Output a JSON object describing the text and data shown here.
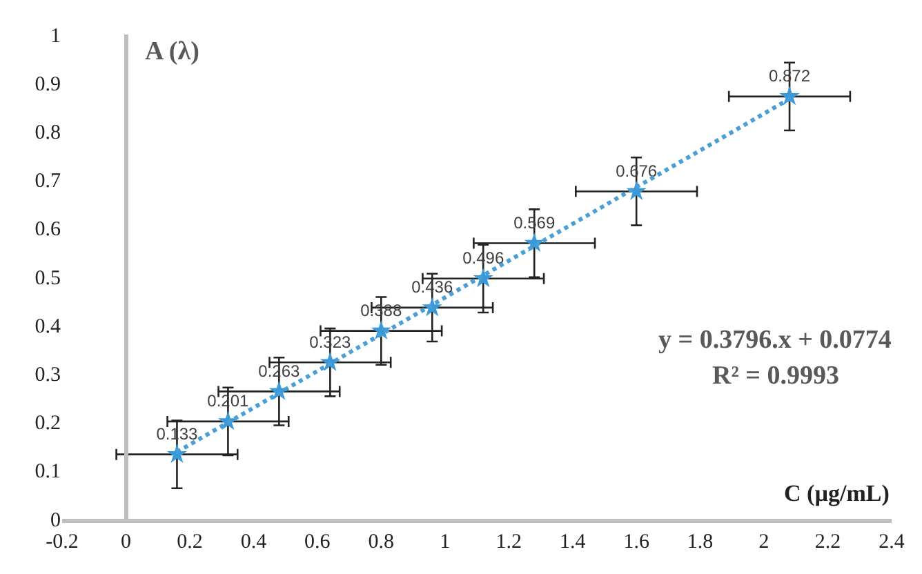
{
  "chart_data": {
    "type": "scatter",
    "xlabel": "C (µg/mL)",
    "ylabel": "A (λ)",
    "xlim": [
      -0.2,
      2.4
    ],
    "xticks": [
      -0.2,
      0,
      0.2,
      0.4,
      0.6,
      0.8,
      1,
      1.2,
      1.4,
      1.6,
      1.8,
      2,
      2.2,
      2.4
    ],
    "ylim": [
      0,
      1
    ],
    "yticks": [
      0,
      0.1,
      0.2,
      0.3,
      0.4,
      0.5,
      0.6,
      0.7,
      0.8,
      0.9,
      1
    ],
    "series": [
      {
        "color": "#3a9ad9",
        "marker": "star",
        "x": [
          0.16,
          0.32,
          0.48,
          0.64,
          0.8,
          0.96,
          1.12,
          1.28,
          1.6,
          2.08
        ],
        "values": [
          0.133,
          0.201,
          0.263,
          0.323,
          0.388,
          0.436,
          0.496,
          0.569,
          0.676,
          0.872
        ],
        "value_labels": [
          "0.133",
          "0.201",
          "0.263",
          "0.323",
          "0.388",
          "0.436",
          "0.496",
          "0.569",
          "0.676",
          "0.872"
        ],
        "errors": [
          0.07,
          0.07,
          0.07,
          0.07,
          0.07,
          0.07,
          0.07,
          0.07,
          0.07,
          0.07
        ],
        "xerrors": [
          0.19,
          0.19,
          0.19,
          0.19,
          0.19,
          0.19,
          0.19,
          0.19,
          0.19,
          0.19
        ]
      },
      {
        "type": "line",
        "color": "#4a9fd6",
        "line_style": "dotted",
        "marker": "none",
        "x": [
          0.16,
          2.08
        ],
        "values": [
          0.138,
          0.867
        ]
      }
    ],
    "annotations": [
      {
        "text": "y = 0.3796.x + 0.0774"
      },
      {
        "text": "R² = 0.9993"
      }
    ]
  }
}
